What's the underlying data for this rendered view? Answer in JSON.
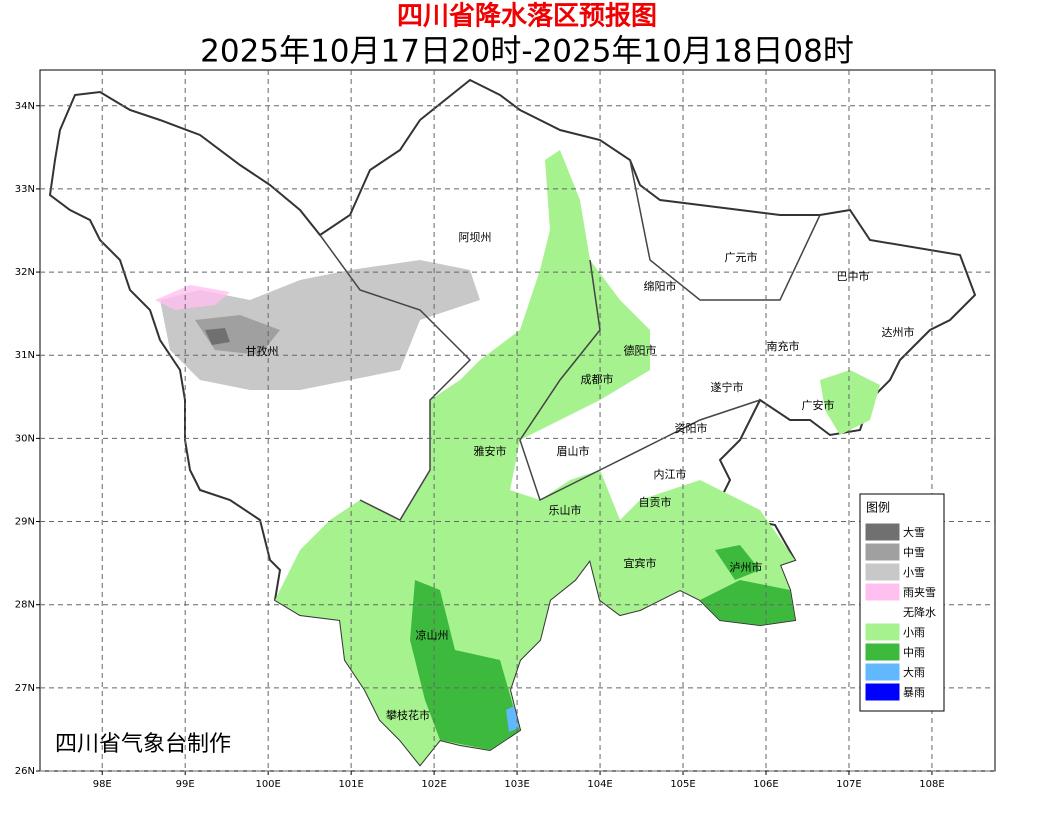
{
  "header": {
    "title": "四川省降水落区预报图",
    "subtitle": "2025年10月17日20时-2025年10月18日08时"
  },
  "map": {
    "xlim": [
      97.25,
      108.76
    ],
    "ylim": [
      26,
      34.43
    ],
    "xticks": [
      {
        "value": 98,
        "label": "98E"
      },
      {
        "value": 99,
        "label": "99E"
      },
      {
        "value": 100,
        "label": "100E"
      },
      {
        "value": 101,
        "label": "101E"
      },
      {
        "value": 102,
        "label": "102E"
      },
      {
        "value": 103,
        "label": "103E"
      },
      {
        "value": 104,
        "label": "104E"
      },
      {
        "value": 105,
        "label": "105E"
      },
      {
        "value": 106,
        "label": "106E"
      },
      {
        "value": 107,
        "label": "107E"
      },
      {
        "value": 108,
        "label": "108E"
      }
    ],
    "yticks": [
      {
        "value": 26,
        "label": "26N"
      },
      {
        "value": 27,
        "label": "27N"
      },
      {
        "value": 28,
        "label": "28N"
      },
      {
        "value": 29,
        "label": "29N"
      },
      {
        "value": 30,
        "label": "30N"
      },
      {
        "value": 31,
        "label": "31N"
      },
      {
        "value": 32,
        "label": "32N"
      },
      {
        "value": 33,
        "label": "33N"
      },
      {
        "value": 34,
        "label": "34N"
      }
    ],
    "regions": [
      "阿坝州",
      "甘孜州",
      "绵阳市",
      "广元市",
      "巴中市",
      "达州市",
      "德阳市",
      "南充市",
      "成都市",
      "遂宁市",
      "广安市",
      "资阳市",
      "雅安市",
      "眉山市",
      "内江市",
      "乐山市",
      "自贡市",
      "宜宾市",
      "泸州市",
      "凉山州",
      "攀枝花市"
    ]
  },
  "legend": {
    "title": "图例",
    "items": [
      {
        "name": "大雪",
        "color": "#707070"
      },
      {
        "name": "中雪",
        "color": "#a0a0a0"
      },
      {
        "name": "小雪",
        "color": "#c8c8c8"
      },
      {
        "name": "雨夹雪",
        "color": "#ffc0f0"
      },
      {
        "name": "无降水",
        "color": "#ffffff"
      },
      {
        "name": "小雨",
        "color": "#a6f28f"
      },
      {
        "name": "中雨",
        "color": "#3dba3d"
      },
      {
        "name": "大雨",
        "color": "#61b8ff"
      },
      {
        "name": "暴雨",
        "color": "#0000fe"
      }
    ]
  },
  "credit": "四川省气象台制作"
}
